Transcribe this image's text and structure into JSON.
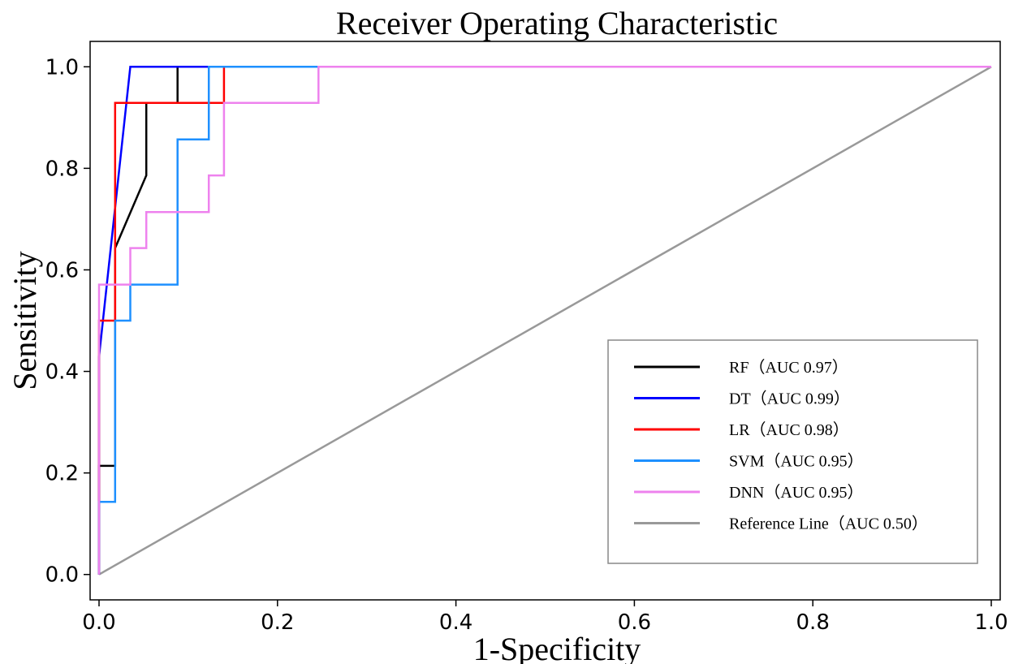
{
  "chart_data": {
    "type": "line",
    "title": "Receiver Operating Characteristic",
    "xlabel": "1-Specificity",
    "ylabel": "Sensitivity",
    "xlim": [
      -0.01,
      1.01
    ],
    "ylim": [
      -0.05,
      1.05
    ],
    "xticks": [
      0.0,
      0.2,
      0.4,
      0.6,
      0.8,
      1.0
    ],
    "yticks": [
      0.0,
      0.2,
      0.4,
      0.6,
      0.8,
      1.0
    ],
    "xtick_labels": [
      "0.0",
      "0.2",
      "0.4",
      "0.6",
      "0.8",
      "1.0"
    ],
    "ytick_labels": [
      "0.0",
      "0.2",
      "0.4",
      "0.6",
      "0.8",
      "1.0"
    ],
    "grid": false,
    "legend_position": "lower-right",
    "series": [
      {
        "name": "RF",
        "legend_label": "RF（AUC  0.97）",
        "color": "#000000",
        "x": [
          0,
          0,
          0.018,
          0.018,
          0.018,
          0.053,
          0.053,
          0.053,
          0.088,
          0.088,
          0.123,
          0.123,
          1.0
        ],
        "y": [
          0,
          0.214,
          0.214,
          0.5,
          0.643,
          0.786,
          0.929,
          0.929,
          0.929,
          1.0,
          1.0,
          1.0,
          1.0
        ]
      },
      {
        "name": "DT",
        "legend_label": "DT（AUC  0.99）",
        "color": "#0000ff",
        "x": [
          0,
          0,
          0.035,
          1.0
        ],
        "y": [
          0,
          0.429,
          1.0,
          1.0
        ]
      },
      {
        "name": "LR",
        "legend_label": "LR（AUC  0.98）",
        "color": "#ff0000",
        "x": [
          0,
          0,
          0.018,
          0.018,
          0.018,
          0.14,
          0.14,
          1.0
        ],
        "y": [
          0,
          0.5,
          0.5,
          0.929,
          0.929,
          0.929,
          1.0,
          1.0
        ]
      },
      {
        "name": "SVM",
        "legend_label": "SVM（AUC  0.95）",
        "color": "#1e90ff",
        "x": [
          0,
          0,
          0.018,
          0.018,
          0.035,
          0.035,
          0.088,
          0.088,
          0.123,
          0.123,
          1.0
        ],
        "y": [
          0,
          0.143,
          0.143,
          0.5,
          0.5,
          0.571,
          0.571,
          0.857,
          0.857,
          1.0,
          1.0
        ]
      },
      {
        "name": "DNN",
        "legend_label": "DNN（AUC  0.95）",
        "color": "#ee82ee",
        "x": [
          0,
          0,
          0.018,
          0.035,
          0.035,
          0.053,
          0.053,
          0.123,
          0.123,
          0.14,
          0.14,
          0.246,
          0.246,
          1.0
        ],
        "y": [
          0,
          0.571,
          0.571,
          0.571,
          0.643,
          0.643,
          0.714,
          0.714,
          0.786,
          0.786,
          0.929,
          0.929,
          1.0,
          1.0
        ]
      },
      {
        "name": "Reference Line",
        "legend_label": "Reference Line（AUC  0.50）",
        "color": "#999999",
        "x": [
          0,
          1.0
        ],
        "y": [
          0,
          1.0
        ]
      }
    ]
  }
}
